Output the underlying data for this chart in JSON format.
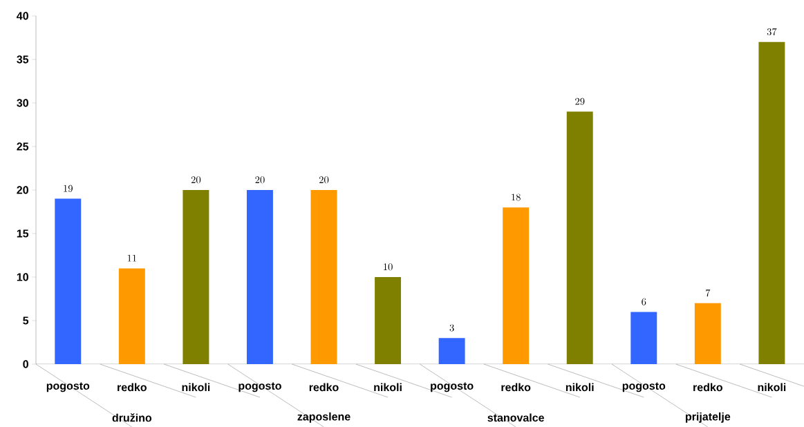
{
  "chart_data": {
    "type": "bar",
    "categories": [
      "družino",
      "zaposlene",
      "stanovalce",
      "prijatelje"
    ],
    "series": [
      {
        "name": "pogosto",
        "color": "#3366ff",
        "values": [
          19,
          20,
          3,
          6
        ]
      },
      {
        "name": "redko",
        "color": "#ff9900",
        "values": [
          11,
          20,
          18,
          7
        ]
      },
      {
        "name": "nikoli",
        "color": "#808000",
        "values": [
          20,
          10,
          29,
          37
        ]
      }
    ],
    "ylim": [
      0,
      40
    ],
    "yticks": [
      0,
      5,
      10,
      15,
      20,
      25,
      30,
      35,
      40
    ],
    "data_labels": true
  }
}
